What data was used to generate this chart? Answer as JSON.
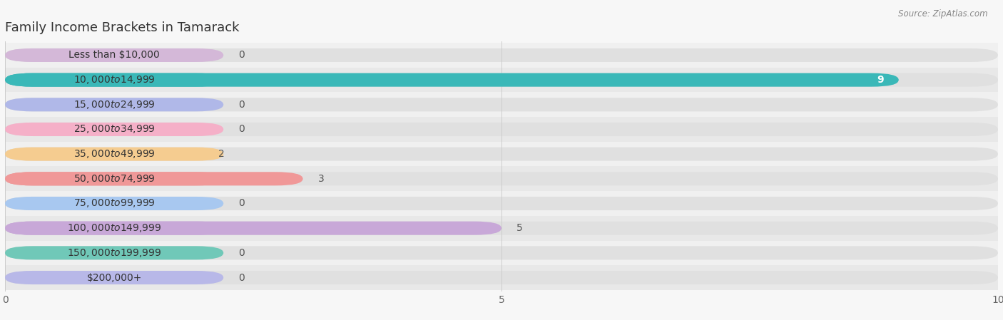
{
  "title": "Family Income Brackets in Tamarack",
  "source": "Source: ZipAtlas.com",
  "categories": [
    "Less than $10,000",
    "$10,000 to $14,999",
    "$15,000 to $24,999",
    "$25,000 to $34,999",
    "$35,000 to $49,999",
    "$50,000 to $74,999",
    "$75,000 to $99,999",
    "$100,000 to $149,999",
    "$150,000 to $199,999",
    "$200,000+"
  ],
  "values": [
    0,
    9,
    0,
    0,
    2,
    3,
    0,
    5,
    0,
    0
  ],
  "bar_colors": [
    "#d4b8d8",
    "#3ab8b8",
    "#b0b8e8",
    "#f5b0c8",
    "#f5cc90",
    "#f09898",
    "#a8c8f0",
    "#c8a8d8",
    "#70c8b8",
    "#b8b8e8"
  ],
  "row_bg_colors": [
    "#f0f0f0",
    "#e8e8e8"
  ],
  "bar_bg_color": "#e0e0e0",
  "background_color": "#f7f7f7",
  "xlim": [
    0,
    10
  ],
  "xticks": [
    0,
    5,
    10
  ],
  "title_fontsize": 13,
  "label_fontsize": 10,
  "tick_fontsize": 10,
  "value_fontsize": 10,
  "bar_height": 0.55
}
